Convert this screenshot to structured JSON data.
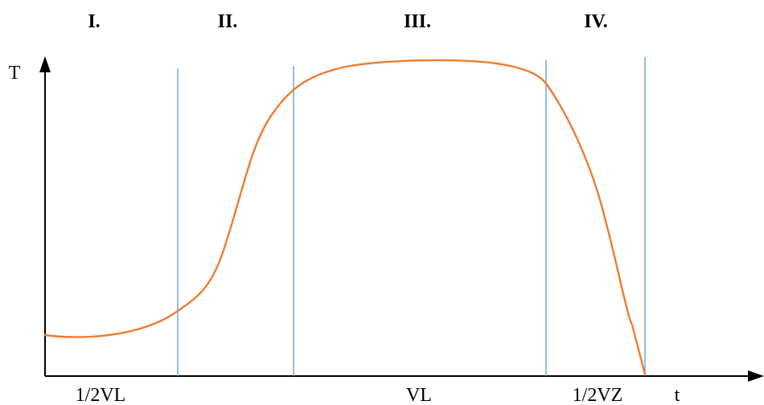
{
  "phases": {
    "phase_1": "I.",
    "phase_2": "II.",
    "phase_3": "III.",
    "phase_4": "IV."
  },
  "axes": {
    "y_label": "T",
    "x_label": "t"
  },
  "x_ticks": {
    "tick_1": "1/2VL",
    "tick_2": "VL",
    "tick_3": "1/2VZ"
  },
  "colors": {
    "axis": "#000000",
    "boundary_lines": "#5b9bd5",
    "curve": "#ed7d31"
  }
}
